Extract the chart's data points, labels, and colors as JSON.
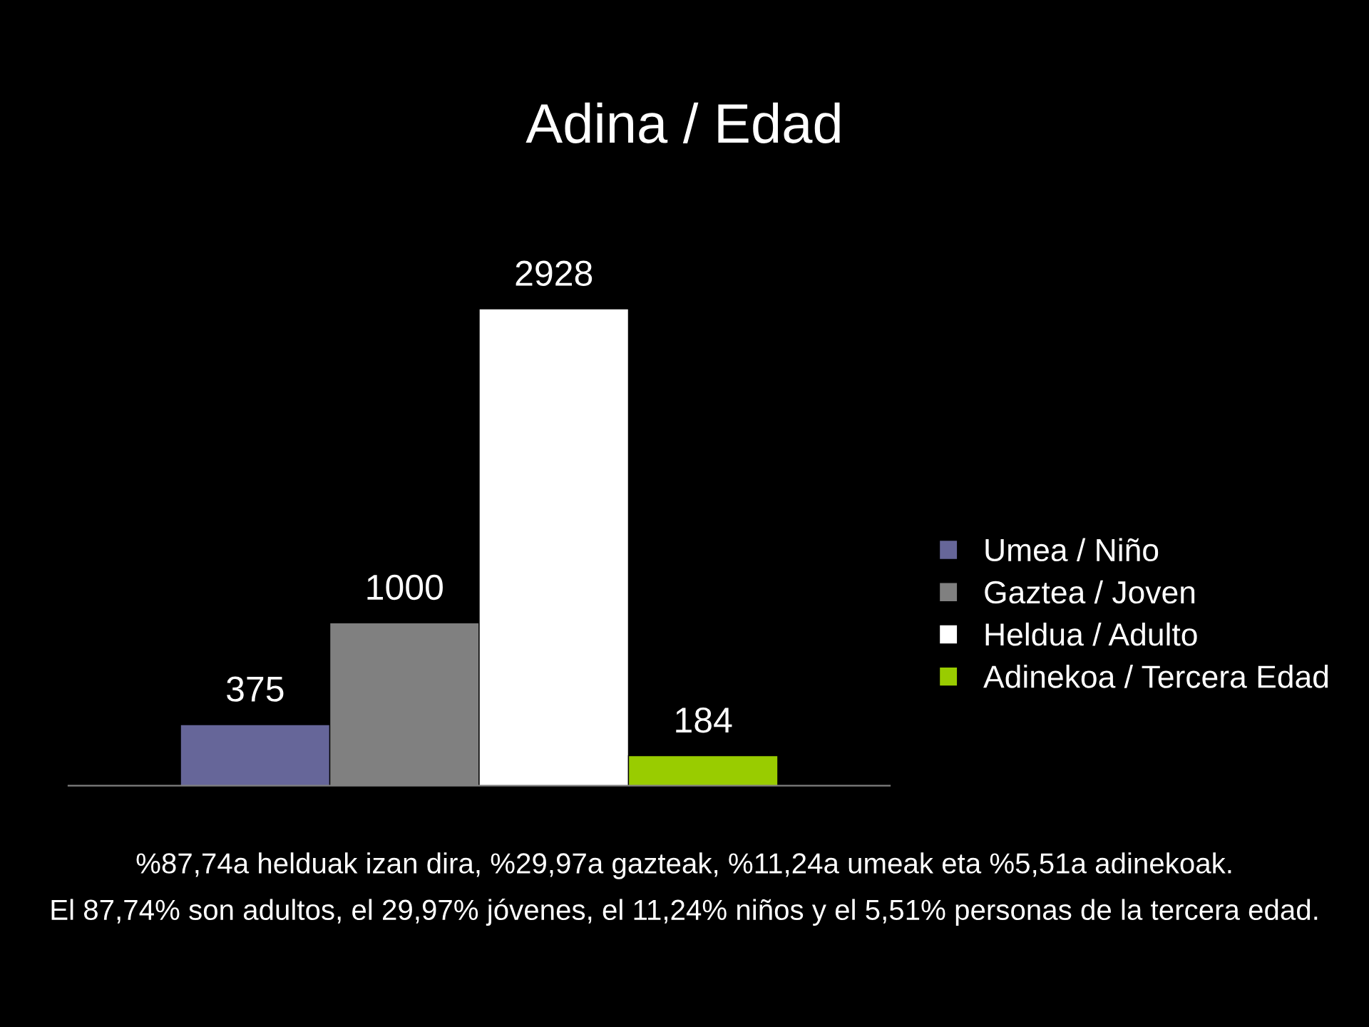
{
  "chart_data": {
    "type": "bar",
    "title": "Adina / Edad",
    "categories": [
      null
    ],
    "series": [
      {
        "name": "Umea / Niño",
        "color": "#666699",
        "values": [
          375
        ]
      },
      {
        "name": "Gaztea / Joven",
        "color": "#808080",
        "values": [
          1000
        ]
      },
      {
        "name": "Heldua / Adulto",
        "color": "#ffffff",
        "values": [
          2928
        ]
      },
      {
        "name": "Adinekoa / Tercera Edad",
        "color": "#99cc00",
        "values": [
          184
        ]
      }
    ],
    "data_labels": true,
    "legend": "right",
    "grid": false,
    "annotations": [
      "%87,74a helduak izan dira, %29,97a gazteak, %11,24a umeak eta %5,51a adinekoak.",
      "El 87,74% son adultos, el 29,97% jóvenes, el 11,24% niños y el 5,51% personas de la tercera edad."
    ]
  }
}
